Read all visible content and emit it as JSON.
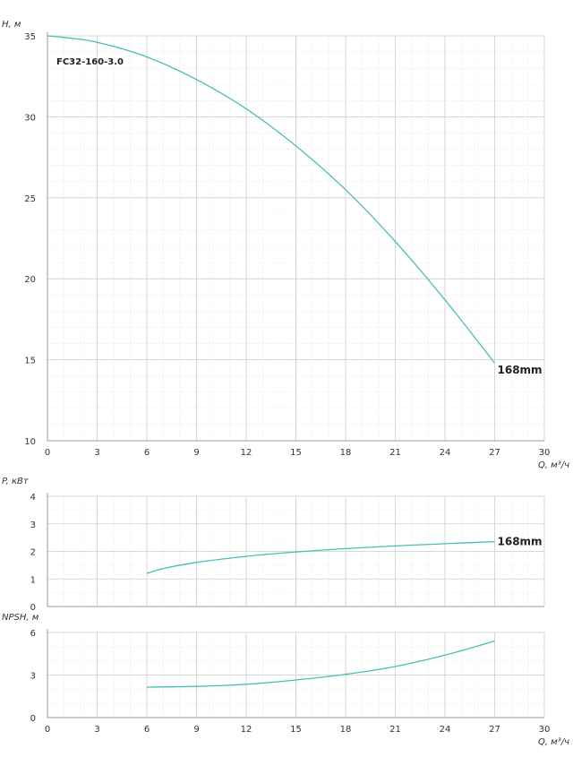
{
  "chart_data": [
    {
      "type": "line",
      "id": "head",
      "ylabel": "H, м",
      "xlabel": "Q, м³/ч",
      "xlim": [
        0,
        30
      ],
      "ylim": [
        10,
        35
      ],
      "xticks": [
        0,
        3,
        6,
        9,
        12,
        15,
        18,
        21,
        24,
        27,
        30
      ],
      "yticks": [
        10,
        15,
        20,
        25,
        30,
        35
      ],
      "grid": true,
      "color": "#4bbdb5",
      "model_label": "FC32-160-3.0",
      "series": [
        {
          "name": "168mm",
          "x": [
            0,
            1,
            3,
            6,
            9,
            12,
            15,
            18,
            21,
            24,
            27
          ],
          "y": [
            35.0,
            34.9,
            34.6,
            33.7,
            32.3,
            30.5,
            28.2,
            25.5,
            22.3,
            18.7,
            14.8
          ]
        }
      ]
    },
    {
      "type": "line",
      "id": "power",
      "ylabel": "P, кВт",
      "xlim": [
        0,
        30
      ],
      "ylim": [
        0,
        4
      ],
      "xticks": [
        0,
        3,
        6,
        9,
        12,
        15,
        18,
        21,
        24,
        27,
        30
      ],
      "yticks": [
        0,
        1,
        2,
        3,
        4
      ],
      "grid": true,
      "color": "#4bbdb5",
      "series": [
        {
          "name": "168mm",
          "x": [
            6,
            7,
            9,
            12,
            15,
            18,
            21,
            24,
            27
          ],
          "y": [
            1.2,
            1.38,
            1.6,
            1.82,
            1.98,
            2.1,
            2.2,
            2.28,
            2.35
          ]
        }
      ]
    },
    {
      "type": "line",
      "id": "npsh",
      "ylabel": "NPSH, м",
      "xlabel": "Q, м³/ч",
      "xlim": [
        0,
        30
      ],
      "ylim": [
        0,
        6
      ],
      "xticks": [
        0,
        3,
        6,
        9,
        12,
        15,
        18,
        21,
        24,
        27,
        30
      ],
      "yticks": [
        0,
        3,
        6
      ],
      "grid": true,
      "color": "#4bbdb5",
      "series": [
        {
          "x": [
            6,
            9,
            12,
            15,
            18,
            21,
            24,
            27
          ],
          "y": [
            2.15,
            2.2,
            2.35,
            2.65,
            3.05,
            3.6,
            4.4,
            5.4
          ]
        }
      ]
    }
  ]
}
